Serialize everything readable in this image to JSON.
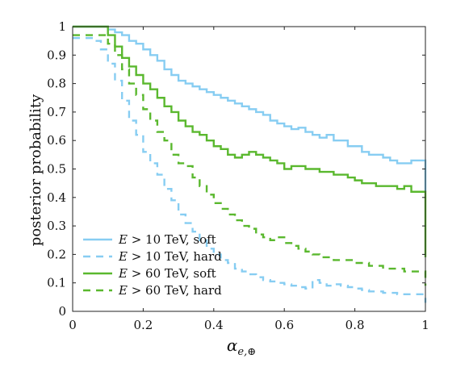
{
  "chart_data": {
    "type": "line",
    "step": true,
    "xlabel": {
      "base": "α",
      "sub": "e,⊕"
    },
    "ylabel": "posterior probability",
    "xlim": [
      0,
      1
    ],
    "ylim": [
      0,
      1
    ],
    "xticks": [
      0,
      0.2,
      0.4,
      0.6,
      0.8,
      1
    ],
    "xtick_labels": [
      "0",
      "0.2",
      "0.4",
      "0.6",
      "0.8",
      "1"
    ],
    "yticks": [
      0,
      0.1,
      0.2,
      0.3,
      0.4,
      0.5,
      0.6,
      0.7,
      0.8,
      0.9,
      1
    ],
    "ytick_labels": [
      "0",
      "0.1",
      "0.2",
      "0.3",
      "0.4",
      "0.5",
      "0.6",
      "0.7",
      "0.8",
      "0.9",
      "1"
    ],
    "grid": false,
    "legend_position": "bottom-left",
    "series": [
      {
        "name": "E > 10 TeV, soft",
        "legend_var": "E",
        "legend_rest": " > 10 TeV, soft",
        "color": "#87cdf2",
        "dash": "solid",
        "x": [
          0,
          0.1,
          0.12,
          0.14,
          0.16,
          0.18,
          0.2,
          0.22,
          0.24,
          0.26,
          0.28,
          0.3,
          0.32,
          0.34,
          0.36,
          0.38,
          0.4,
          0.42,
          0.44,
          0.46,
          0.48,
          0.5,
          0.52,
          0.54,
          0.56,
          0.58,
          0.6,
          0.62,
          0.64,
          0.66,
          0.68,
          0.7,
          0.72,
          0.74,
          0.76,
          0.78,
          0.8,
          0.82,
          0.84,
          0.86,
          0.88,
          0.9,
          0.92,
          0.94,
          0.96,
          0.98,
          1.0
        ],
        "y": [
          1.0,
          0.99,
          0.98,
          0.97,
          0.95,
          0.94,
          0.92,
          0.9,
          0.88,
          0.85,
          0.83,
          0.81,
          0.8,
          0.79,
          0.78,
          0.77,
          0.76,
          0.75,
          0.74,
          0.73,
          0.72,
          0.71,
          0.7,
          0.69,
          0.67,
          0.66,
          0.65,
          0.64,
          0.645,
          0.63,
          0.62,
          0.61,
          0.62,
          0.6,
          0.6,
          0.58,
          0.58,
          0.56,
          0.55,
          0.55,
          0.54,
          0.53,
          0.52,
          0.52,
          0.53,
          0.53,
          0.42
        ]
      },
      {
        "name": "E > 10 TeV, hard",
        "legend_var": "E",
        "legend_rest": " > 10 TeV, hard",
        "color": "#87cdf2",
        "dash": "dashed",
        "x": [
          0,
          0.06,
          0.08,
          0.1,
          0.12,
          0.14,
          0.16,
          0.18,
          0.2,
          0.22,
          0.24,
          0.26,
          0.28,
          0.3,
          0.32,
          0.34,
          0.36,
          0.38,
          0.4,
          0.42,
          0.44,
          0.46,
          0.48,
          0.5,
          0.52,
          0.54,
          0.56,
          0.58,
          0.6,
          0.62,
          0.64,
          0.66,
          0.68,
          0.7,
          0.72,
          0.74,
          0.76,
          0.78,
          0.8,
          0.82,
          0.84,
          0.86,
          0.88,
          0.9,
          0.92,
          0.94,
          0.96,
          0.98,
          1.0
        ],
        "y": [
          0.96,
          0.95,
          0.92,
          0.87,
          0.81,
          0.74,
          0.67,
          0.62,
          0.56,
          0.52,
          0.48,
          0.43,
          0.39,
          0.34,
          0.31,
          0.28,
          0.25,
          0.22,
          0.2,
          0.18,
          0.17,
          0.15,
          0.14,
          0.13,
          0.12,
          0.11,
          0.105,
          0.1,
          0.095,
          0.09,
          0.085,
          0.08,
          0.11,
          0.1,
          0.09,
          0.095,
          0.09,
          0.085,
          0.08,
          0.075,
          0.07,
          0.07,
          0.065,
          0.065,
          0.06,
          0.06,
          0.06,
          0.06,
          0.03
        ]
      },
      {
        "name": "E > 60 TeV, soft",
        "legend_var": "E",
        "legend_rest": " > 60 TeV, soft",
        "color": "#5ab82e",
        "dash": "solid",
        "x": [
          0,
          0.1,
          0.12,
          0.14,
          0.16,
          0.18,
          0.2,
          0.22,
          0.24,
          0.26,
          0.28,
          0.3,
          0.32,
          0.34,
          0.36,
          0.38,
          0.4,
          0.42,
          0.44,
          0.46,
          0.48,
          0.5,
          0.52,
          0.54,
          0.56,
          0.58,
          0.6,
          0.62,
          0.64,
          0.66,
          0.68,
          0.7,
          0.72,
          0.74,
          0.76,
          0.78,
          0.8,
          0.82,
          0.84,
          0.86,
          0.88,
          0.9,
          0.92,
          0.94,
          0.96,
          0.98,
          1.0
        ],
        "y": [
          1.0,
          0.97,
          0.93,
          0.89,
          0.86,
          0.83,
          0.8,
          0.78,
          0.75,
          0.72,
          0.7,
          0.67,
          0.65,
          0.63,
          0.62,
          0.6,
          0.58,
          0.57,
          0.55,
          0.54,
          0.55,
          0.56,
          0.55,
          0.54,
          0.53,
          0.52,
          0.5,
          0.51,
          0.51,
          0.5,
          0.5,
          0.49,
          0.49,
          0.48,
          0.48,
          0.47,
          0.46,
          0.45,
          0.45,
          0.44,
          0.44,
          0.44,
          0.43,
          0.44,
          0.42,
          0.42,
          0.19
        ]
      },
      {
        "name": "E > 60 TeV, hard",
        "legend_var": "E",
        "legend_rest": " > 60 TeV, hard",
        "color": "#5ab82e",
        "dash": "dashed",
        "x": [
          0,
          0.08,
          0.1,
          0.12,
          0.14,
          0.16,
          0.18,
          0.2,
          0.22,
          0.24,
          0.26,
          0.28,
          0.3,
          0.32,
          0.34,
          0.36,
          0.38,
          0.4,
          0.42,
          0.44,
          0.46,
          0.48,
          0.5,
          0.52,
          0.54,
          0.56,
          0.58,
          0.6,
          0.62,
          0.64,
          0.66,
          0.68,
          0.7,
          0.72,
          0.74,
          0.76,
          0.78,
          0.8,
          0.82,
          0.84,
          0.86,
          0.88,
          0.9,
          0.92,
          0.94,
          0.96,
          0.98,
          1.0
        ],
        "y": [
          0.97,
          0.97,
          0.94,
          0.9,
          0.85,
          0.8,
          0.76,
          0.71,
          0.67,
          0.63,
          0.6,
          0.55,
          0.52,
          0.51,
          0.47,
          0.44,
          0.41,
          0.38,
          0.36,
          0.34,
          0.32,
          0.3,
          0.29,
          0.27,
          0.26,
          0.25,
          0.26,
          0.24,
          0.23,
          0.22,
          0.21,
          0.2,
          0.19,
          0.19,
          0.18,
          0.18,
          0.18,
          0.17,
          0.17,
          0.16,
          0.16,
          0.15,
          0.15,
          0.15,
          0.14,
          0.14,
          0.14,
          0.09
        ]
      }
    ]
  }
}
